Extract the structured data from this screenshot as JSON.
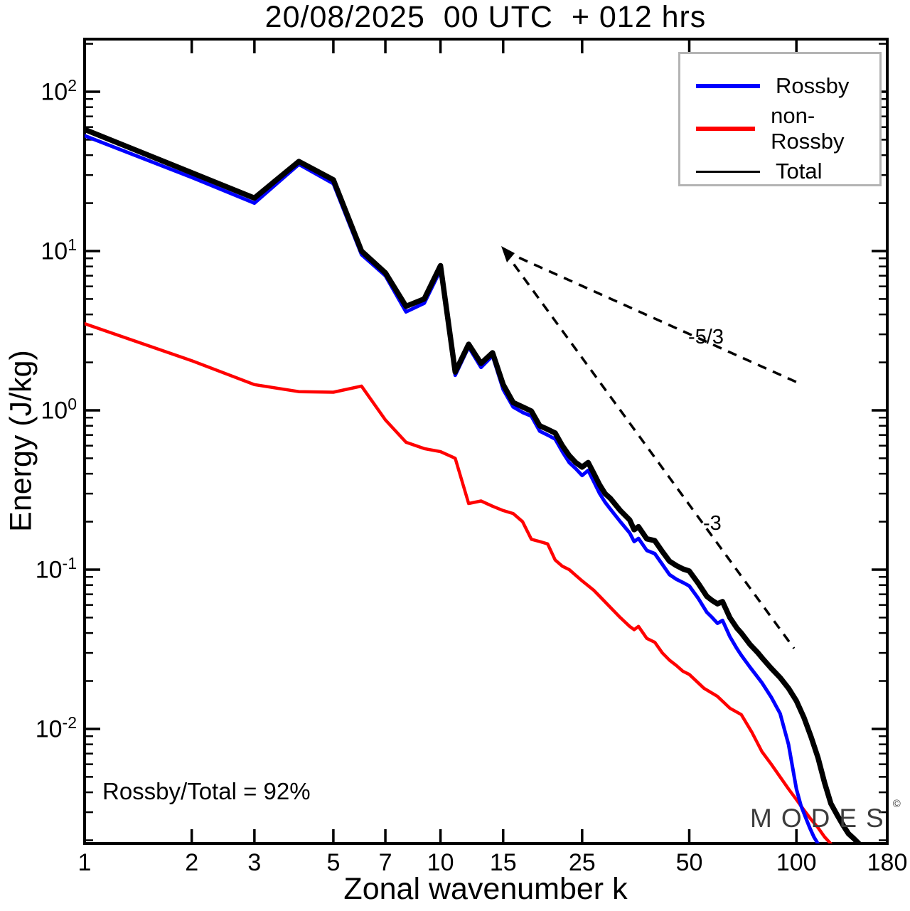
{
  "title": "20/08/2025  00 UTC  + 012 hrs",
  "axes": {
    "xlabel": "Zonal wavenumber k",
    "ylabel": "Energy (J/kg)",
    "x_ticks": [
      1,
      2,
      3,
      5,
      7,
      10,
      15,
      25,
      50,
      100,
      180
    ],
    "y_ticks": [
      {
        "base": "10",
        "exp": "2"
      },
      {
        "base": "10",
        "exp": "1"
      },
      {
        "base": "10",
        "exp": "0"
      },
      {
        "base": "10",
        "exp": "-1"
      },
      {
        "base": "10",
        "exp": "-2"
      }
    ]
  },
  "legend": {
    "items": [
      {
        "label": "Rossby",
        "color": "#0000ff",
        "thickness": 6
      },
      {
        "label": "non-Rossby",
        "color": "#ff0000",
        "thickness": 6
      },
      {
        "label": "Total",
        "color": "#000000",
        "thickness": 3
      }
    ]
  },
  "annotations": {
    "ratio_text": "Rossby/Total = 92%",
    "slope_53_label": "-5/3",
    "slope_3_label": "-3",
    "watermark": "MODES",
    "watermark_sup": "©"
  },
  "colors": {
    "rossby": "#0000ff",
    "non_rossby": "#ff0000",
    "total": "#000000",
    "frame": "#000000",
    "dashed": "#000000",
    "legend_border": "#b4b4b4",
    "watermark": "#3c3c3c"
  },
  "chart_data": {
    "type": "line",
    "xscale": "log",
    "yscale": "log",
    "xlim": [
      1,
      180
    ],
    "ylim": [
      0.00191,
      214
    ],
    "grid": false,
    "legend_position": "upper right",
    "reference_lines": [
      {
        "name": "slope-5-3",
        "points": [
          [
            15.1,
            10.0
          ],
          [
            101,
            1.49
          ]
        ],
        "style": "dashed"
      },
      {
        "name": "slope-3",
        "points": [
          [
            15.1,
            10.0
          ],
          [
            98.5,
            0.032
          ]
        ],
        "style": "dashed"
      }
    ],
    "series": [
      {
        "name": "non-Rossby",
        "color": "#ff0000",
        "width": 4.5,
        "points": [
          [
            1,
            3.5
          ],
          [
            2,
            2.05
          ],
          [
            3,
            1.45
          ],
          [
            4,
            1.31
          ],
          [
            5,
            1.3
          ],
          [
            6,
            1.42
          ],
          [
            7,
            0.87
          ],
          [
            8,
            0.63
          ],
          [
            9,
            0.575
          ],
          [
            10,
            0.55
          ],
          [
            11,
            0.5
          ],
          [
            12,
            0.26
          ],
          [
            13,
            0.27
          ],
          [
            14,
            0.25
          ],
          [
            15,
            0.235
          ],
          [
            16,
            0.225
          ],
          [
            17,
            0.2
          ],
          [
            18,
            0.155
          ],
          [
            19,
            0.15
          ],
          [
            20,
            0.145
          ],
          [
            21,
            0.115
          ],
          [
            22,
            0.105
          ],
          [
            23,
            0.1
          ],
          [
            24,
            0.092
          ],
          [
            25,
            0.085
          ],
          [
            27,
            0.074
          ],
          [
            28,
            0.068
          ],
          [
            30,
            0.058
          ],
          [
            32,
            0.05
          ],
          [
            34,
            0.044
          ],
          [
            35,
            0.042
          ],
          [
            36,
            0.044
          ],
          [
            38,
            0.037
          ],
          [
            40,
            0.035
          ],
          [
            42,
            0.03
          ],
          [
            44,
            0.027
          ],
          [
            46,
            0.025
          ],
          [
            48,
            0.023
          ],
          [
            50,
            0.022
          ],
          [
            55,
            0.018
          ],
          [
            60,
            0.016
          ],
          [
            65,
            0.0135
          ],
          [
            70,
            0.0123
          ],
          [
            75,
            0.0095
          ],
          [
            80,
            0.0072
          ],
          [
            85,
            0.006
          ],
          [
            90,
            0.005
          ],
          [
            95,
            0.0042
          ],
          [
            100,
            0.0036
          ],
          [
            105,
            0.0031
          ],
          [
            110,
            0.0027
          ],
          [
            115,
            0.0024
          ],
          [
            120,
            0.0021
          ],
          [
            125,
            0.0019
          ]
        ]
      },
      {
        "name": "Rossby",
        "color": "#0000ff",
        "width": 5,
        "points": [
          [
            1,
            53
          ],
          [
            2,
            29
          ],
          [
            3,
            20
          ],
          [
            4,
            35
          ],
          [
            5,
            26.5
          ],
          [
            6,
            9.5
          ],
          [
            7,
            7.0
          ],
          [
            8,
            4.15
          ],
          [
            9,
            4.7
          ],
          [
            10,
            7.6
          ],
          [
            11,
            1.66
          ],
          [
            12,
            2.5
          ],
          [
            13,
            1.86
          ],
          [
            14,
            2.2
          ],
          [
            15,
            1.35
          ],
          [
            16,
            1.05
          ],
          [
            17,
            0.97
          ],
          [
            18,
            0.92
          ],
          [
            19,
            0.74
          ],
          [
            20,
            0.7
          ],
          [
            21,
            0.66
          ],
          [
            22,
            0.55
          ],
          [
            23,
            0.47
          ],
          [
            24,
            0.43
          ],
          [
            25,
            0.39
          ],
          [
            26,
            0.42
          ],
          [
            27,
            0.355
          ],
          [
            28,
            0.3
          ],
          [
            29,
            0.265
          ],
          [
            30,
            0.24
          ],
          [
            32,
            0.2
          ],
          [
            34,
            0.17
          ],
          [
            35,
            0.15
          ],
          [
            36,
            0.157
          ],
          [
            38,
            0.132
          ],
          [
            40,
            0.126
          ],
          [
            42,
            0.108
          ],
          [
            44,
            0.093
          ],
          [
            46,
            0.087
          ],
          [
            48,
            0.083
          ],
          [
            50,
            0.079
          ],
          [
            53,
            0.066
          ],
          [
            56,
            0.054
          ],
          [
            58,
            0.05
          ],
          [
            60,
            0.046
          ],
          [
            62,
            0.048
          ],
          [
            65,
            0.038
          ],
          [
            68,
            0.032
          ],
          [
            70,
            0.029
          ],
          [
            74,
            0.0245
          ],
          [
            78,
            0.021
          ],
          [
            80,
            0.0195
          ],
          [
            85,
            0.0158
          ],
          [
            90,
            0.0125
          ],
          [
            95,
            0.008
          ],
          [
            100,
            0.0042
          ],
          [
            103,
            0.0033
          ],
          [
            106,
            0.0028
          ],
          [
            109,
            0.0024
          ],
          [
            112,
            0.0021
          ],
          [
            115,
            0.0019
          ]
        ]
      },
      {
        "name": "Total",
        "color": "#000000",
        "width": 7.5,
        "points": [
          [
            1,
            58
          ],
          [
            2,
            31
          ],
          [
            3,
            21.5
          ],
          [
            4,
            36.5
          ],
          [
            5,
            28
          ],
          [
            6,
            10
          ],
          [
            7,
            7.3
          ],
          [
            8,
            4.5
          ],
          [
            9,
            5.0
          ],
          [
            10,
            8.1
          ],
          [
            11,
            1.74
          ],
          [
            12,
            2.6
          ],
          [
            13,
            1.97
          ],
          [
            14,
            2.3
          ],
          [
            15,
            1.45
          ],
          [
            16,
            1.12
          ],
          [
            17,
            1.05
          ],
          [
            18,
            0.99
          ],
          [
            19,
            0.8
          ],
          [
            20,
            0.76
          ],
          [
            21,
            0.72
          ],
          [
            22,
            0.6
          ],
          [
            23,
            0.52
          ],
          [
            24,
            0.47
          ],
          [
            25,
            0.44
          ],
          [
            26,
            0.47
          ],
          [
            27,
            0.4
          ],
          [
            28,
            0.34
          ],
          [
            29,
            0.3
          ],
          [
            30,
            0.28
          ],
          [
            32,
            0.235
          ],
          [
            34,
            0.205
          ],
          [
            35,
            0.178
          ],
          [
            36,
            0.186
          ],
          [
            38,
            0.156
          ],
          [
            40,
            0.152
          ],
          [
            42,
            0.13
          ],
          [
            44,
            0.113
          ],
          [
            46,
            0.106
          ],
          [
            48,
            0.101
          ],
          [
            50,
            0.098
          ],
          [
            53,
            0.082
          ],
          [
            56,
            0.068
          ],
          [
            58,
            0.064
          ],
          [
            60,
            0.061
          ],
          [
            62,
            0.063
          ],
          [
            65,
            0.05
          ],
          [
            68,
            0.043
          ],
          [
            70,
            0.04
          ],
          [
            74,
            0.034
          ],
          [
            78,
            0.03
          ],
          [
            80,
            0.028
          ],
          [
            85,
            0.024
          ],
          [
            90,
            0.021
          ],
          [
            95,
            0.018
          ],
          [
            100,
            0.015
          ],
          [
            105,
            0.0118
          ],
          [
            110,
            0.0089
          ],
          [
            115,
            0.0066
          ],
          [
            120,
            0.0046
          ],
          [
            125,
            0.0034
          ],
          [
            130,
            0.0029
          ],
          [
            135,
            0.0025
          ],
          [
            140,
            0.0022
          ],
          [
            145,
            0.00205
          ],
          [
            150,
            0.0019
          ]
        ]
      }
    ]
  }
}
